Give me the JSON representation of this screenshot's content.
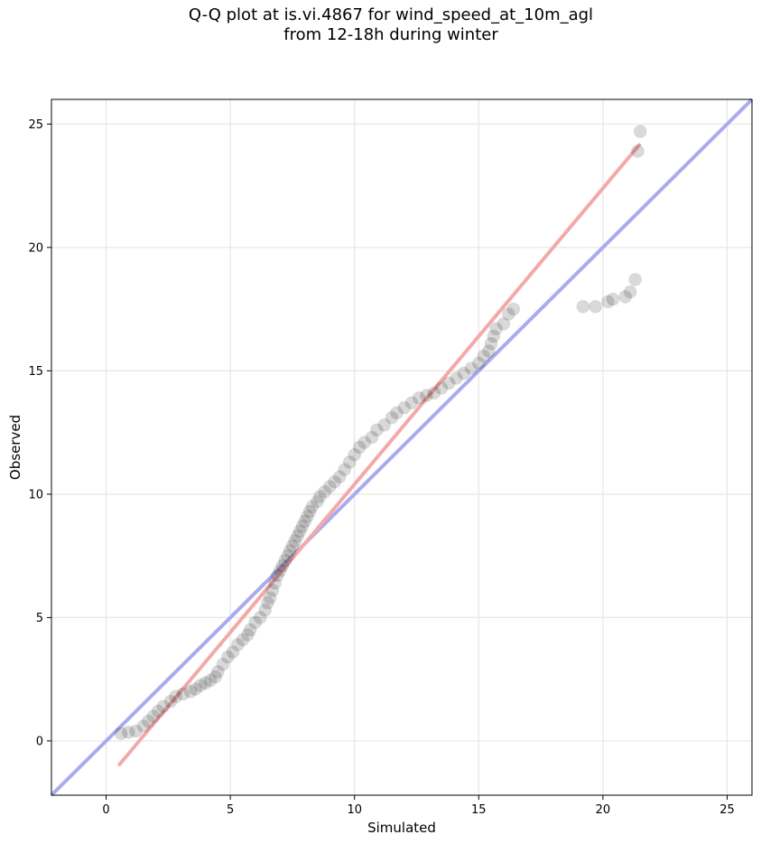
{
  "chart_data": {
    "type": "scatter",
    "title": "Q-Q plot at is.vi.4867 for wind_speed_at_10m_agl",
    "subtitle": "from 12-18h during winter",
    "xlabel": "Simulated",
    "ylabel": "Observed",
    "xlim": [
      -2.2,
      26.0
    ],
    "ylim": [
      -2.2,
      26.0
    ],
    "xticks": [
      "0",
      "5",
      "10",
      "15",
      "20",
      "25"
    ],
    "yticks": [
      "0",
      "5",
      "10",
      "15",
      "20",
      "25"
    ],
    "grid": true,
    "points": [
      [
        0.6,
        0.3
      ],
      [
        0.9,
        0.35
      ],
      [
        1.2,
        0.4
      ],
      [
        1.5,
        0.6
      ],
      [
        1.7,
        0.8
      ],
      [
        1.9,
        1.0
      ],
      [
        2.1,
        1.2
      ],
      [
        2.3,
        1.4
      ],
      [
        2.6,
        1.6
      ],
      [
        2.8,
        1.8
      ],
      [
        3.1,
        1.9
      ],
      [
        3.4,
        2.0
      ],
      [
        3.6,
        2.1
      ],
      [
        3.8,
        2.25
      ],
      [
        4.0,
        2.35
      ],
      [
        4.2,
        2.45
      ],
      [
        4.4,
        2.6
      ],
      [
        4.5,
        2.8
      ],
      [
        4.7,
        3.1
      ],
      [
        4.9,
        3.4
      ],
      [
        5.1,
        3.6
      ],
      [
        5.3,
        3.9
      ],
      [
        5.5,
        4.1
      ],
      [
        5.7,
        4.3
      ],
      [
        5.8,
        4.5
      ],
      [
        6.0,
        4.8
      ],
      [
        6.2,
        5.0
      ],
      [
        6.4,
        5.3
      ],
      [
        6.5,
        5.6
      ],
      [
        6.6,
        5.8
      ],
      [
        6.7,
        6.1
      ],
      [
        6.8,
        6.4
      ],
      [
        6.9,
        6.7
      ],
      [
        7.0,
        6.9
      ],
      [
        7.1,
        7.1
      ],
      [
        7.2,
        7.3
      ],
      [
        7.3,
        7.5
      ],
      [
        7.4,
        7.7
      ],
      [
        7.5,
        7.9
      ],
      [
        7.6,
        8.1
      ],
      [
        7.7,
        8.3
      ],
      [
        7.8,
        8.5
      ],
      [
        7.9,
        8.7
      ],
      [
        8.0,
        8.9
      ],
      [
        8.1,
        9.1
      ],
      [
        8.2,
        9.3
      ],
      [
        8.3,
        9.5
      ],
      [
        8.5,
        9.7
      ],
      [
        8.6,
        9.9
      ],
      [
        8.8,
        10.1
      ],
      [
        9.0,
        10.3
      ],
      [
        9.2,
        10.5
      ],
      [
        9.4,
        10.7
      ],
      [
        9.6,
        11.0
      ],
      [
        9.8,
        11.3
      ],
      [
        10.0,
        11.6
      ],
      [
        10.2,
        11.9
      ],
      [
        10.4,
        12.1
      ],
      [
        10.7,
        12.3
      ],
      [
        10.9,
        12.6
      ],
      [
        11.2,
        12.8
      ],
      [
        11.5,
        13.1
      ],
      [
        11.7,
        13.3
      ],
      [
        12.0,
        13.5
      ],
      [
        12.3,
        13.7
      ],
      [
        12.6,
        13.9
      ],
      [
        12.9,
        14.0
      ],
      [
        13.2,
        14.1
      ],
      [
        13.5,
        14.3
      ],
      [
        13.8,
        14.5
      ],
      [
        14.1,
        14.7
      ],
      [
        14.4,
        14.9
      ],
      [
        14.7,
        15.1
      ],
      [
        15.0,
        15.3
      ],
      [
        15.2,
        15.6
      ],
      [
        15.4,
        15.8
      ],
      [
        15.5,
        16.1
      ],
      [
        15.6,
        16.4
      ],
      [
        15.7,
        16.7
      ],
      [
        16.0,
        16.9
      ],
      [
        16.2,
        17.3
      ],
      [
        16.4,
        17.5
      ],
      [
        19.2,
        17.6
      ],
      [
        19.7,
        17.6
      ],
      [
        20.2,
        17.8
      ],
      [
        20.4,
        17.9
      ],
      [
        20.9,
        18.0
      ],
      [
        21.1,
        18.2
      ],
      [
        21.3,
        18.7
      ],
      [
        21.4,
        23.9
      ],
      [
        21.5,
        24.7
      ]
    ],
    "reference_line": {
      "from": [
        -2.2,
        -2.2
      ],
      "to": [
        26.0,
        26.0
      ],
      "color": "#aaaaee"
    },
    "fit_line": {
      "from": [
        0.5,
        -1.0
      ],
      "to": [
        21.5,
        24.2
      ],
      "color": "#f4a9a9"
    }
  }
}
